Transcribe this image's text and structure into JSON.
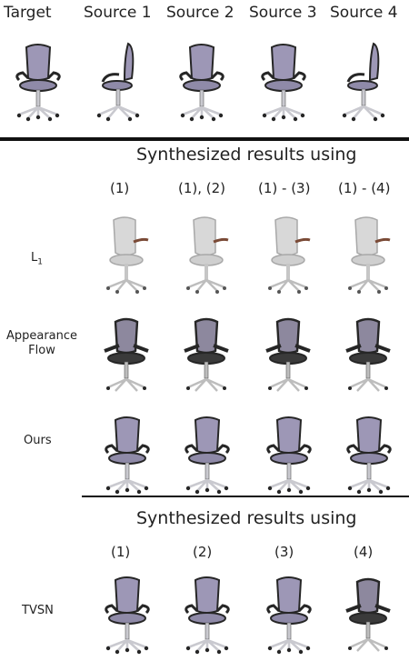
{
  "headers": {
    "target": "Target",
    "source1": "Source 1",
    "source2": "Source 2",
    "source3": "Source 3",
    "source4": "Source 4"
  },
  "section1": {
    "title": "Synthesized results using",
    "cols": [
      "(1)",
      "(1), (2)",
      "(1) - (3)",
      "(1) - (4)"
    ]
  },
  "rows": {
    "l1": "L",
    "l1_sub": "1",
    "af_line1": "Appearance",
    "af_line2": "Flow",
    "ours": "Ours",
    "tvsn": "TVSN"
  },
  "section2": {
    "title": "Synthesized results using",
    "cols": [
      "(1)",
      "(2)",
      "(3)",
      "(4)"
    ]
  },
  "colors": {
    "seat": "#8f8aa8",
    "back": "#9d97b6",
    "frame": "#262626",
    "metal": "#c9c9cf",
    "l1_body": "#d8d8d8",
    "l1_arm": "#7a4a36"
  }
}
